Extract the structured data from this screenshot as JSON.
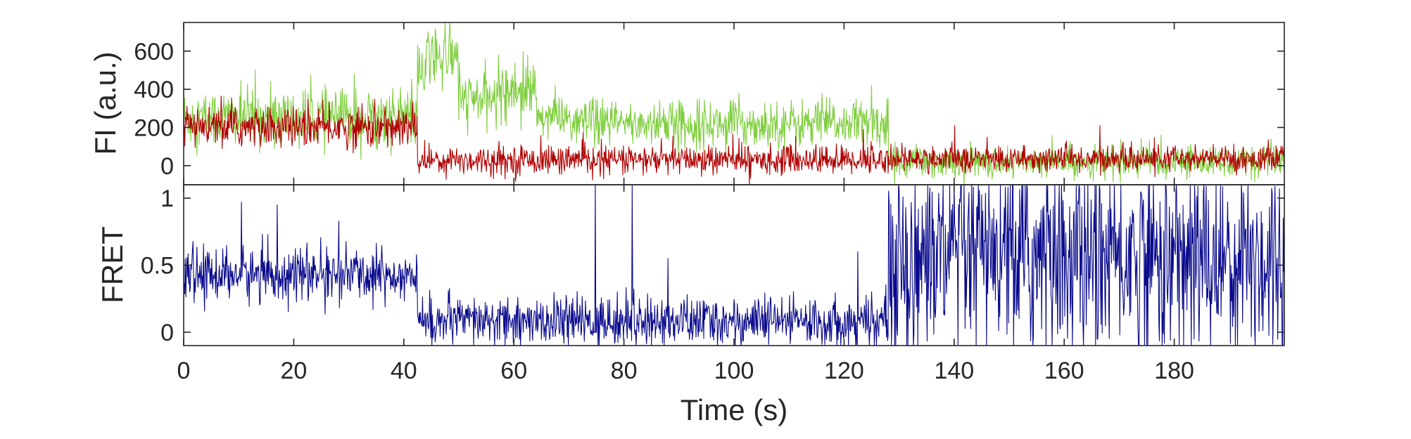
{
  "chart_data": [
    {
      "type": "line",
      "panel": "top",
      "ylabel": "FI (a.u.)",
      "xlabel": "",
      "xlim": [
        0,
        200
      ],
      "ylim": [
        -100,
        750
      ],
      "yticks": [
        0,
        200,
        400,
        600
      ],
      "ytick_labels": [
        "0",
        "200",
        "400",
        "600"
      ],
      "xticks": [
        0,
        20,
        40,
        60,
        80,
        100,
        120,
        140,
        160,
        180
      ],
      "show_xtick_labels": false,
      "colors": {
        "donor": "#7fce3e",
        "acceptor": "#b00000"
      },
      "series": [
        {
          "color_key": "donor",
          "segments": [
            {
              "start": 0,
              "end": 42.5,
              "mean": 250,
              "noise": 100
            },
            {
              "start": 42.5,
              "end": 44,
              "mean": 470,
              "noise": 110
            },
            {
              "start": 44,
              "end": 50,
              "mean": 560,
              "noise": 110
            },
            {
              "start": 50,
              "end": 57,
              "mean": 350,
              "noise": 90
            },
            {
              "start": 57,
              "end": 64,
              "mean": 400,
              "noise": 100
            },
            {
              "start": 64,
              "end": 70,
              "mean": 260,
              "noise": 80
            },
            {
              "start": 70,
              "end": 128,
              "mean": 220,
              "noise": 80
            },
            {
              "start": 128,
              "end": 200,
              "mean": 20,
              "noise": 55
            }
          ],
          "spikes": [
            [
              47.5,
              750
            ],
            [
              48.3,
              720
            ],
            [
              62.5,
              580
            ],
            [
              45.8,
              690
            ],
            [
              31,
              480
            ],
            [
              13,
              500
            ],
            [
              116,
              380
            ],
            [
              125,
              420
            ]
          ]
        },
        {
          "color_key": "acceptor",
          "segments": [
            {
              "start": 0,
              "end": 42.5,
              "mean": 200,
              "noise": 70
            },
            {
              "start": 42.5,
              "end": 128,
              "mean": 30,
              "noise": 50
            },
            {
              "start": 128,
              "end": 200,
              "mean": 35,
              "noise": 45
            }
          ],
          "spikes": [
            [
              123.5,
              190
            ],
            [
              166.5,
              210
            ],
            [
              146,
              150
            ]
          ]
        }
      ]
    },
    {
      "type": "line",
      "panel": "bottom",
      "ylabel": "FRET",
      "xlabel": "Time (s)",
      "xlim": [
        0,
        200
      ],
      "ylim": [
        -0.1,
        1.1
      ],
      "yticks": [
        0,
        0.5,
        1
      ],
      "ytick_labels": [
        "0",
        "0.5",
        "1"
      ],
      "xticks": [
        0,
        20,
        40,
        60,
        80,
        100,
        120,
        140,
        160,
        180
      ],
      "xtick_labels": [
        "0",
        "20",
        "40",
        "60",
        "80",
        "100",
        "120",
        "140",
        "160",
        "180"
      ],
      "colors": {
        "fret": "#0a0a8c"
      },
      "series": [
        {
          "color_key": "fret",
          "segments": [
            {
              "start": 0,
              "end": 42.5,
              "mean": 0.43,
              "noise": 0.13
            },
            {
              "start": 42.5,
              "end": 128,
              "mean": 0.08,
              "noise": 0.12
            },
            {
              "start": 128,
              "end": 200,
              "mean": 0.55,
              "noise": 0.5
            }
          ],
          "spikes": [
            [
              10.5,
              0.97
            ],
            [
              17,
              0.95
            ],
            [
              74.8,
              1.1
            ],
            [
              81.5,
              1.1
            ],
            [
              75.3,
              -0.1
            ],
            [
              88,
              0.55
            ],
            [
              122.5,
              0.6
            ]
          ]
        }
      ]
    }
  ]
}
